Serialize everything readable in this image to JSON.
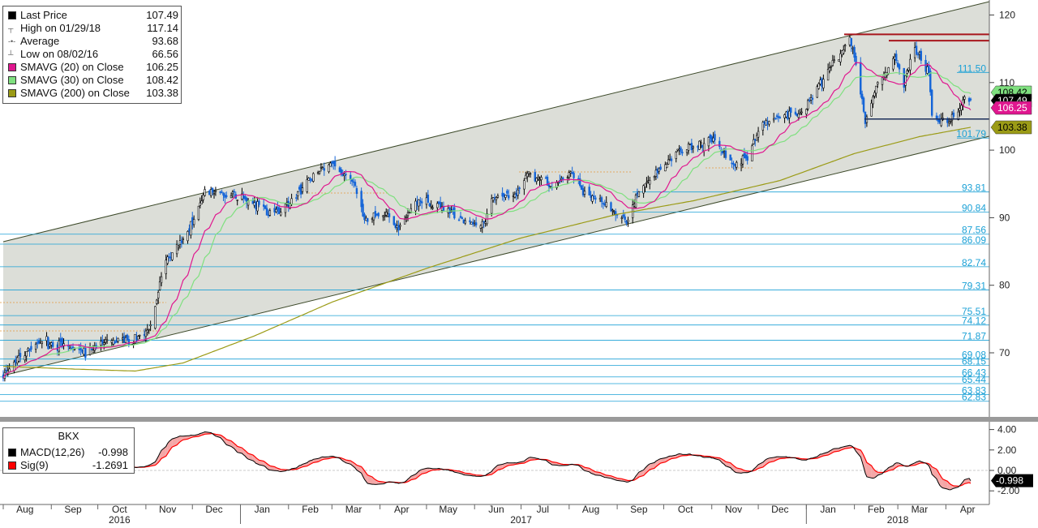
{
  "legend": {
    "rows": [
      {
        "label": "Last Price",
        "value": "107.49",
        "swatch": "#000000",
        "icon": "square-swatch"
      },
      {
        "label": "High on 01/29/18",
        "value": "117.14",
        "swatch": "",
        "icon": "high-marker-icon"
      },
      {
        "label": "Average",
        "value": "93.68",
        "swatch": "",
        "icon": "average-line-icon"
      },
      {
        "label": "Low on 08/02/16",
        "value": "66.56",
        "swatch": "",
        "icon": "low-marker-icon"
      },
      {
        "label": "SMAVG (20) on Close",
        "value": "106.25",
        "swatch": "#e0178f",
        "icon": "square-swatch"
      },
      {
        "label": "SMAVG (30) on Close",
        "value": "108.42",
        "swatch": "#7fe07f",
        "icon": "square-swatch"
      },
      {
        "label": "SMAVG (200) on Close",
        "value": "103.38",
        "swatch": "#9b9b16",
        "icon": "square-swatch"
      }
    ]
  },
  "macd_legend": {
    "ticker": "BKX",
    "rows": [
      {
        "label": "MACD(12,26)",
        "value": "-0.998",
        "swatch": "#000000"
      },
      {
        "label": "Sig(9)",
        "value": "-1.2691",
        "swatch": "#ff0000"
      }
    ]
  },
  "colors": {
    "price": "#1565d8",
    "sma20": "#e0178f",
    "sma30": "#7fe07f",
    "sma200": "#9b9b16",
    "channel_fill": "#dcded8",
    "fib": "#1ba1d6",
    "macd": "#000000",
    "signal": "#ff0000",
    "macd_fill": "#f4a6a6"
  },
  "chart_data": [
    {
      "type": "candlestick",
      "title": "",
      "xlabel": "",
      "ylabel": "",
      "ylim": [
        61,
        123
      ],
      "y_ticks": [
        "70",
        "80",
        "90",
        "100",
        "110",
        "120"
      ],
      "x_month_labels": [
        "Aug",
        "Sep",
        "Oct",
        "Nov",
        "Dec",
        "Jan",
        "Feb",
        "Mar",
        "Apr",
        "May",
        "Jun",
        "Jul",
        "Aug",
        "Sep",
        "Oct",
        "Nov",
        "Dec",
        "Jan",
        "Feb",
        "Mar",
        "Apr"
      ],
      "x_year_labels": [
        "2016",
        "2017",
        "2018"
      ],
      "fib_levels": [
        "111.50",
        "101.79",
        "93.81",
        "90.84",
        "87.56",
        "86.09",
        "82.74",
        "79.31",
        "75.51",
        "74.12",
        "71.87",
        "69.08",
        "68.15",
        "66.43",
        "65.44",
        "63.83",
        "62.83"
      ],
      "price_tags": [
        {
          "label": "108.42",
          "color": "#7fe07f"
        },
        {
          "label": "107.49",
          "color": "#000000"
        },
        {
          "label": "106.25",
          "color": "#e0178f"
        },
        {
          "label": "103.38",
          "color": "#9b9b16"
        }
      ],
      "close_anchors": [
        [
          "2016-08-01",
          66.6
        ],
        [
          "2016-08-12",
          69.5
        ],
        [
          "2016-08-26",
          71.8
        ],
        [
          "2016-09-09",
          71.0
        ],
        [
          "2016-09-23",
          70.0
        ],
        [
          "2016-10-07",
          71.8
        ],
        [
          "2016-10-21",
          71.5
        ],
        [
          "2016-11-01",
          73.0
        ],
        [
          "2016-11-04",
          74.5
        ],
        [
          "2016-11-09",
          79.0
        ],
        [
          "2016-11-14",
          84.0
        ],
        [
          "2016-11-25",
          87.0
        ],
        [
          "2016-12-02",
          90.0
        ],
        [
          "2016-12-08",
          93.5
        ],
        [
          "2016-12-21",
          93.5
        ],
        [
          "2017-01-06",
          92.5
        ],
        [
          "2017-01-20",
          90.5
        ],
        [
          "2017-02-01",
          92.0
        ],
        [
          "2017-02-15",
          96.0
        ],
        [
          "2017-02-28",
          98.0
        ],
        [
          "2017-03-06",
          97.0
        ],
        [
          "2017-03-15",
          95.0
        ],
        [
          "2017-03-22",
          89.5
        ],
        [
          "2017-04-05",
          90.5
        ],
        [
          "2017-04-13",
          88.5
        ],
        [
          "2017-04-25",
          92.5
        ],
        [
          "2017-05-10",
          92.0
        ],
        [
          "2017-05-24",
          89.5
        ],
        [
          "2017-06-07",
          89.0
        ],
        [
          "2017-06-12",
          93.0
        ],
        [
          "2017-06-27",
          93.0
        ],
        [
          "2017-07-06",
          96.5
        ],
        [
          "2017-07-21",
          95.0
        ],
        [
          "2017-08-02",
          96.5
        ],
        [
          "2017-08-10",
          94.0
        ],
        [
          "2017-08-24",
          92.0
        ],
        [
          "2017-09-07",
          89.5
        ],
        [
          "2017-09-15",
          94.0
        ],
        [
          "2017-09-27",
          97.0
        ],
        [
          "2017-10-11",
          100.0
        ],
        [
          "2017-10-25",
          101.0
        ],
        [
          "2017-11-03",
          101.5
        ],
        [
          "2017-11-15",
          97.5
        ],
        [
          "2017-11-24",
          99.0
        ],
        [
          "2017-12-04",
          104.0
        ],
        [
          "2017-12-15",
          105.0
        ],
        [
          "2017-12-29",
          105.5
        ],
        [
          "2018-01-05",
          108.0
        ],
        [
          "2018-01-16",
          112.0
        ],
        [
          "2018-01-29",
          116.5
        ],
        [
          "2018-02-02",
          112.5
        ],
        [
          "2018-02-08",
          104.0
        ],
        [
          "2018-02-14",
          109.0
        ],
        [
          "2018-02-27",
          114.0
        ],
        [
          "2018-03-05",
          110.0
        ],
        [
          "2018-03-12",
          115.0
        ],
        [
          "2018-03-21",
          111.5
        ],
        [
          "2018-03-23",
          105.0
        ],
        [
          "2018-04-02",
          104.0
        ],
        [
          "2018-04-12",
          107.0
        ],
        [
          "2018-04-17",
          107.49
        ]
      ],
      "series": [
        {
          "name": "SMAVG (20) on Close",
          "values": "20-day moving average of close"
        },
        {
          "name": "SMAVG (30) on Close",
          "values": "30-day moving average of close"
        },
        {
          "name": "SMAVG (200) on Close",
          "values": "200-day moving average of close"
        }
      ]
    },
    {
      "type": "line",
      "title": "BKX",
      "ylim": [
        -3,
        5
      ],
      "y_ticks": [
        "4.00",
        "2.00",
        "0.00",
        "-2.00"
      ],
      "last_value_tag": "-0.998",
      "series": [
        {
          "name": "MACD(12,26)",
          "last": -0.998
        },
        {
          "name": "Sig(9)",
          "last": -1.2691
        }
      ]
    }
  ]
}
